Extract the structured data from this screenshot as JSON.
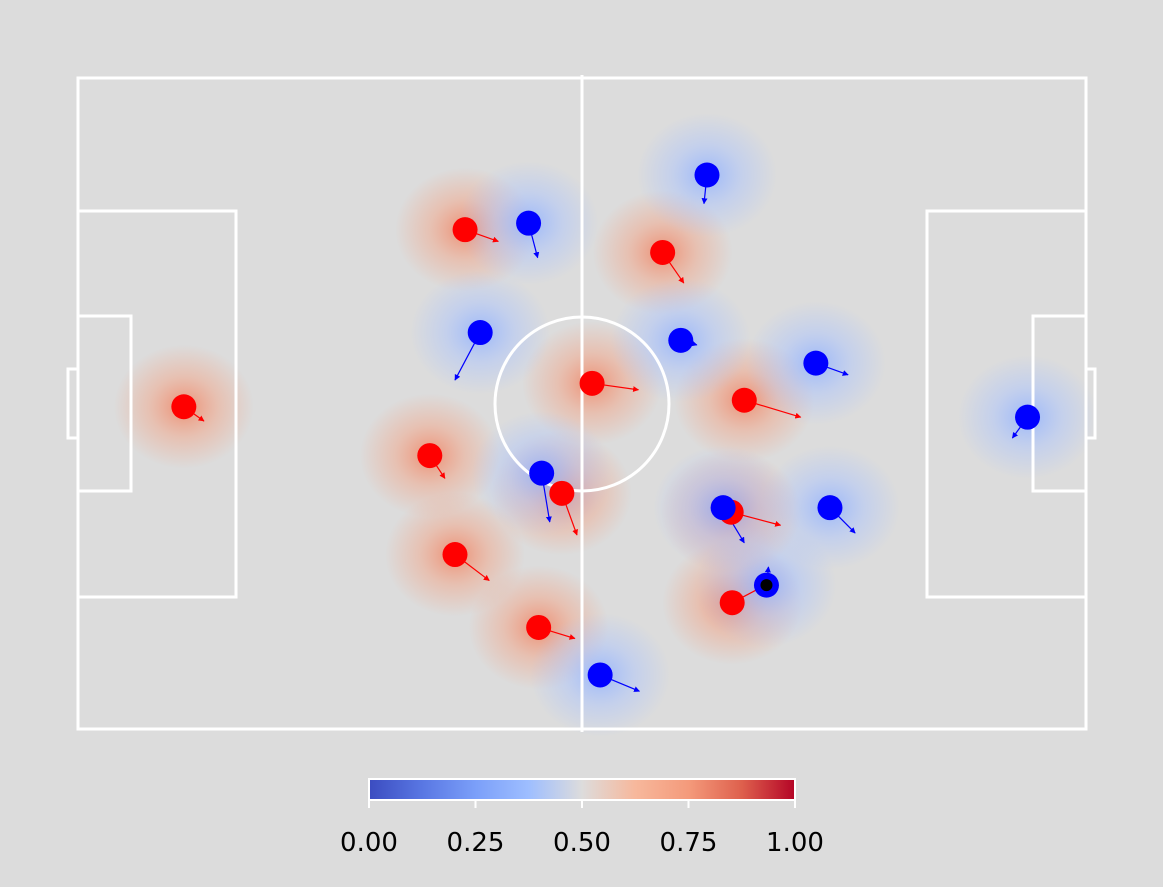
{
  "chart_data": {
    "type": "scatter",
    "title": "",
    "xlim": [
      0,
      1
    ],
    "ylim": [
      0,
      1
    ],
    "background_color": "#dcdcdc",
    "pitch_line_color": "#ffffff",
    "series": [
      {
        "color": "#ff0000",
        "points": [
          {
            "x": 0.105,
            "y": 0.495,
            "dx": 0.02,
            "dy": -0.022
          },
          {
            "x": 0.349,
            "y": 0.42,
            "dx": 0.015,
            "dy": -0.035
          },
          {
            "x": 0.374,
            "y": 0.268,
            "dx": 0.034,
            "dy": -0.04
          },
          {
            "x": 0.384,
            "y": 0.767,
            "dx": 0.033,
            "dy": -0.018
          },
          {
            "x": 0.457,
            "y": 0.156,
            "dx": 0.036,
            "dy": -0.017
          },
          {
            "x": 0.48,
            "y": 0.362,
            "dx": 0.015,
            "dy": -0.064
          },
          {
            "x": 0.51,
            "y": 0.531,
            "dx": 0.046,
            "dy": -0.01
          },
          {
            "x": 0.58,
            "y": 0.732,
            "dx": 0.021,
            "dy": -0.047
          },
          {
            "x": 0.648,
            "y": 0.333,
            "dx": 0.049,
            "dy": -0.02
          },
          {
            "x": 0.649,
            "y": 0.194,
            "dx": 0.033,
            "dy": 0.027
          },
          {
            "x": 0.661,
            "y": 0.505,
            "dx": 0.056,
            "dy": -0.026
          }
        ]
      },
      {
        "color": "#0000ff",
        "points": [
          {
            "x": 0.399,
            "y": 0.609,
            "dx": -0.025,
            "dy": -0.073
          },
          {
            "x": 0.447,
            "y": 0.777,
            "dx": 0.009,
            "dy": -0.053
          },
          {
            "x": 0.46,
            "y": 0.393,
            "dx": 0.008,
            "dy": -0.075
          },
          {
            "x": 0.518,
            "y": 0.083,
            "dx": 0.039,
            "dy": -0.025
          },
          {
            "x": 0.598,
            "y": 0.597,
            "dx": 0.016,
            "dy": -0.007
          },
          {
            "x": 0.624,
            "y": 0.851,
            "dx": -0.003,
            "dy": -0.044
          },
          {
            "x": 0.64,
            "y": 0.34,
            "dx": 0.021,
            "dy": -0.054
          },
          {
            "x": 0.683,
            "y": 0.221,
            "dx": 0.002,
            "dy": 0.028
          },
          {
            "x": 0.732,
            "y": 0.562,
            "dx": 0.032,
            "dy": -0.018
          },
          {
            "x": 0.746,
            "y": 0.34,
            "dx": 0.025,
            "dy": -0.039
          },
          {
            "x": 0.942,
            "y": 0.479,
            "dx": -0.015,
            "dy": -0.032
          }
        ]
      }
    ],
    "ball": {
      "x": 0.683,
      "y": 0.221,
      "color": "#000000"
    },
    "heatmap": {
      "colormap": "coolwarm",
      "range": [
        0,
        1
      ],
      "neutral": 0.5
    },
    "colorbar": {
      "orientation": "horizontal",
      "ticks": [
        0.0,
        0.25,
        0.5,
        0.75,
        1.0
      ],
      "tick_labels": [
        "0.00",
        "0.25",
        "0.50",
        "0.75",
        "1.00"
      ]
    }
  }
}
